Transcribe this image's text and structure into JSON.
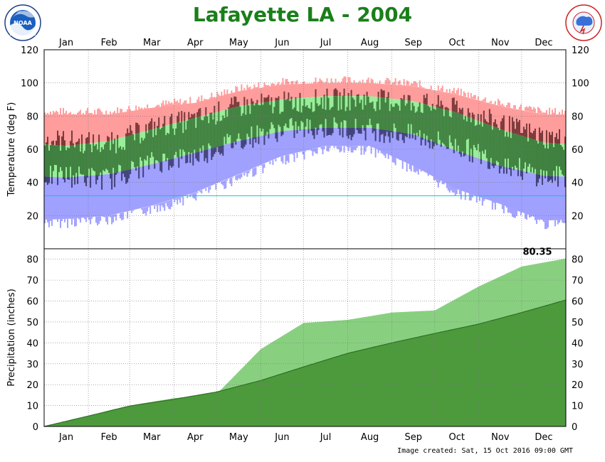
{
  "title": "Lafayette LA - 2004",
  "footer": "Image created: Sat, 15 Oct 2016 09:00 GMT",
  "logos": {
    "left": "NOAA",
    "right_text": "NATIONAL WEATHER SERVICE"
  },
  "colors": {
    "title": "#1a7f1a",
    "record_high_band": "#ff9d9d",
    "normal_band": "#99ee99",
    "record_low_band": "#a0a0ff",
    "observed_bar_red": "#7a3838",
    "observed_bar_green": "#3f7f3f",
    "observed_bar_blue": "#404078",
    "freezing_line": "#00cccc",
    "precip_normal": "#4c9a3c",
    "precip_observed": "#88d080"
  },
  "chart_data": [
    {
      "type": "area",
      "name": "temperature",
      "ylabel": "Temperature (deg F)",
      "ylim": [
        0,
        120
      ],
      "yticks": [
        20,
        40,
        60,
        80,
        100,
        120
      ],
      "months": [
        "Jan",
        "Feb",
        "Mar",
        "Apr",
        "May",
        "Jun",
        "Jul",
        "Aug",
        "Sep",
        "Oct",
        "Nov",
        "Dec"
      ],
      "grid": true,
      "freezing_line": 32,
      "bands_monthly": {
        "record_high": [
          81,
          81,
          85,
          88,
          95,
          99,
          100,
          100,
          98,
          93,
          86,
          81
        ],
        "normal_high": [
          62,
          65,
          72,
          79,
          86,
          90,
          92,
          92,
          89,
          82,
          72,
          64
        ],
        "normal_low": [
          43,
          45,
          51,
          58,
          65,
          71,
          73,
          73,
          69,
          59,
          50,
          44
        ],
        "record_low": [
          18,
          20,
          26,
          34,
          45,
          56,
          62,
          62,
          50,
          36,
          27,
          17
        ]
      },
      "observed_monthly": {
        "high": [
          65,
          63,
          73,
          78,
          86,
          88,
          90,
          90,
          88,
          84,
          75,
          67
        ],
        "low": [
          44,
          42,
          52,
          56,
          66,
          72,
          73,
          72,
          68,
          62,
          52,
          43
        ]
      }
    },
    {
      "type": "area",
      "name": "precipitation",
      "ylabel": "Precipitation (inches)",
      "ylim": [
        0,
        85
      ],
      "yticks": [
        0,
        10,
        20,
        30,
        40,
        50,
        60,
        70,
        80
      ],
      "months": [
        "Jan",
        "Feb",
        "Mar",
        "Apr",
        "May",
        "Jun",
        "Jul",
        "Aug",
        "Sep",
        "Oct",
        "Nov",
        "Dec"
      ],
      "grid": true,
      "total_label": "80.35",
      "normal_cumulative_monthly_end": [
        5.0,
        9.8,
        13.0,
        16.5,
        22.0,
        28.5,
        35.0,
        40.0,
        44.5,
        49.0,
        54.5,
        60.5
      ],
      "observed_cumulative_monthly_end": [
        3.0,
        10.0,
        13.5,
        15.5,
        37.0,
        49.5,
        51.0,
        54.5,
        55.5,
        67.0,
        76.5,
        80.35
      ]
    }
  ]
}
